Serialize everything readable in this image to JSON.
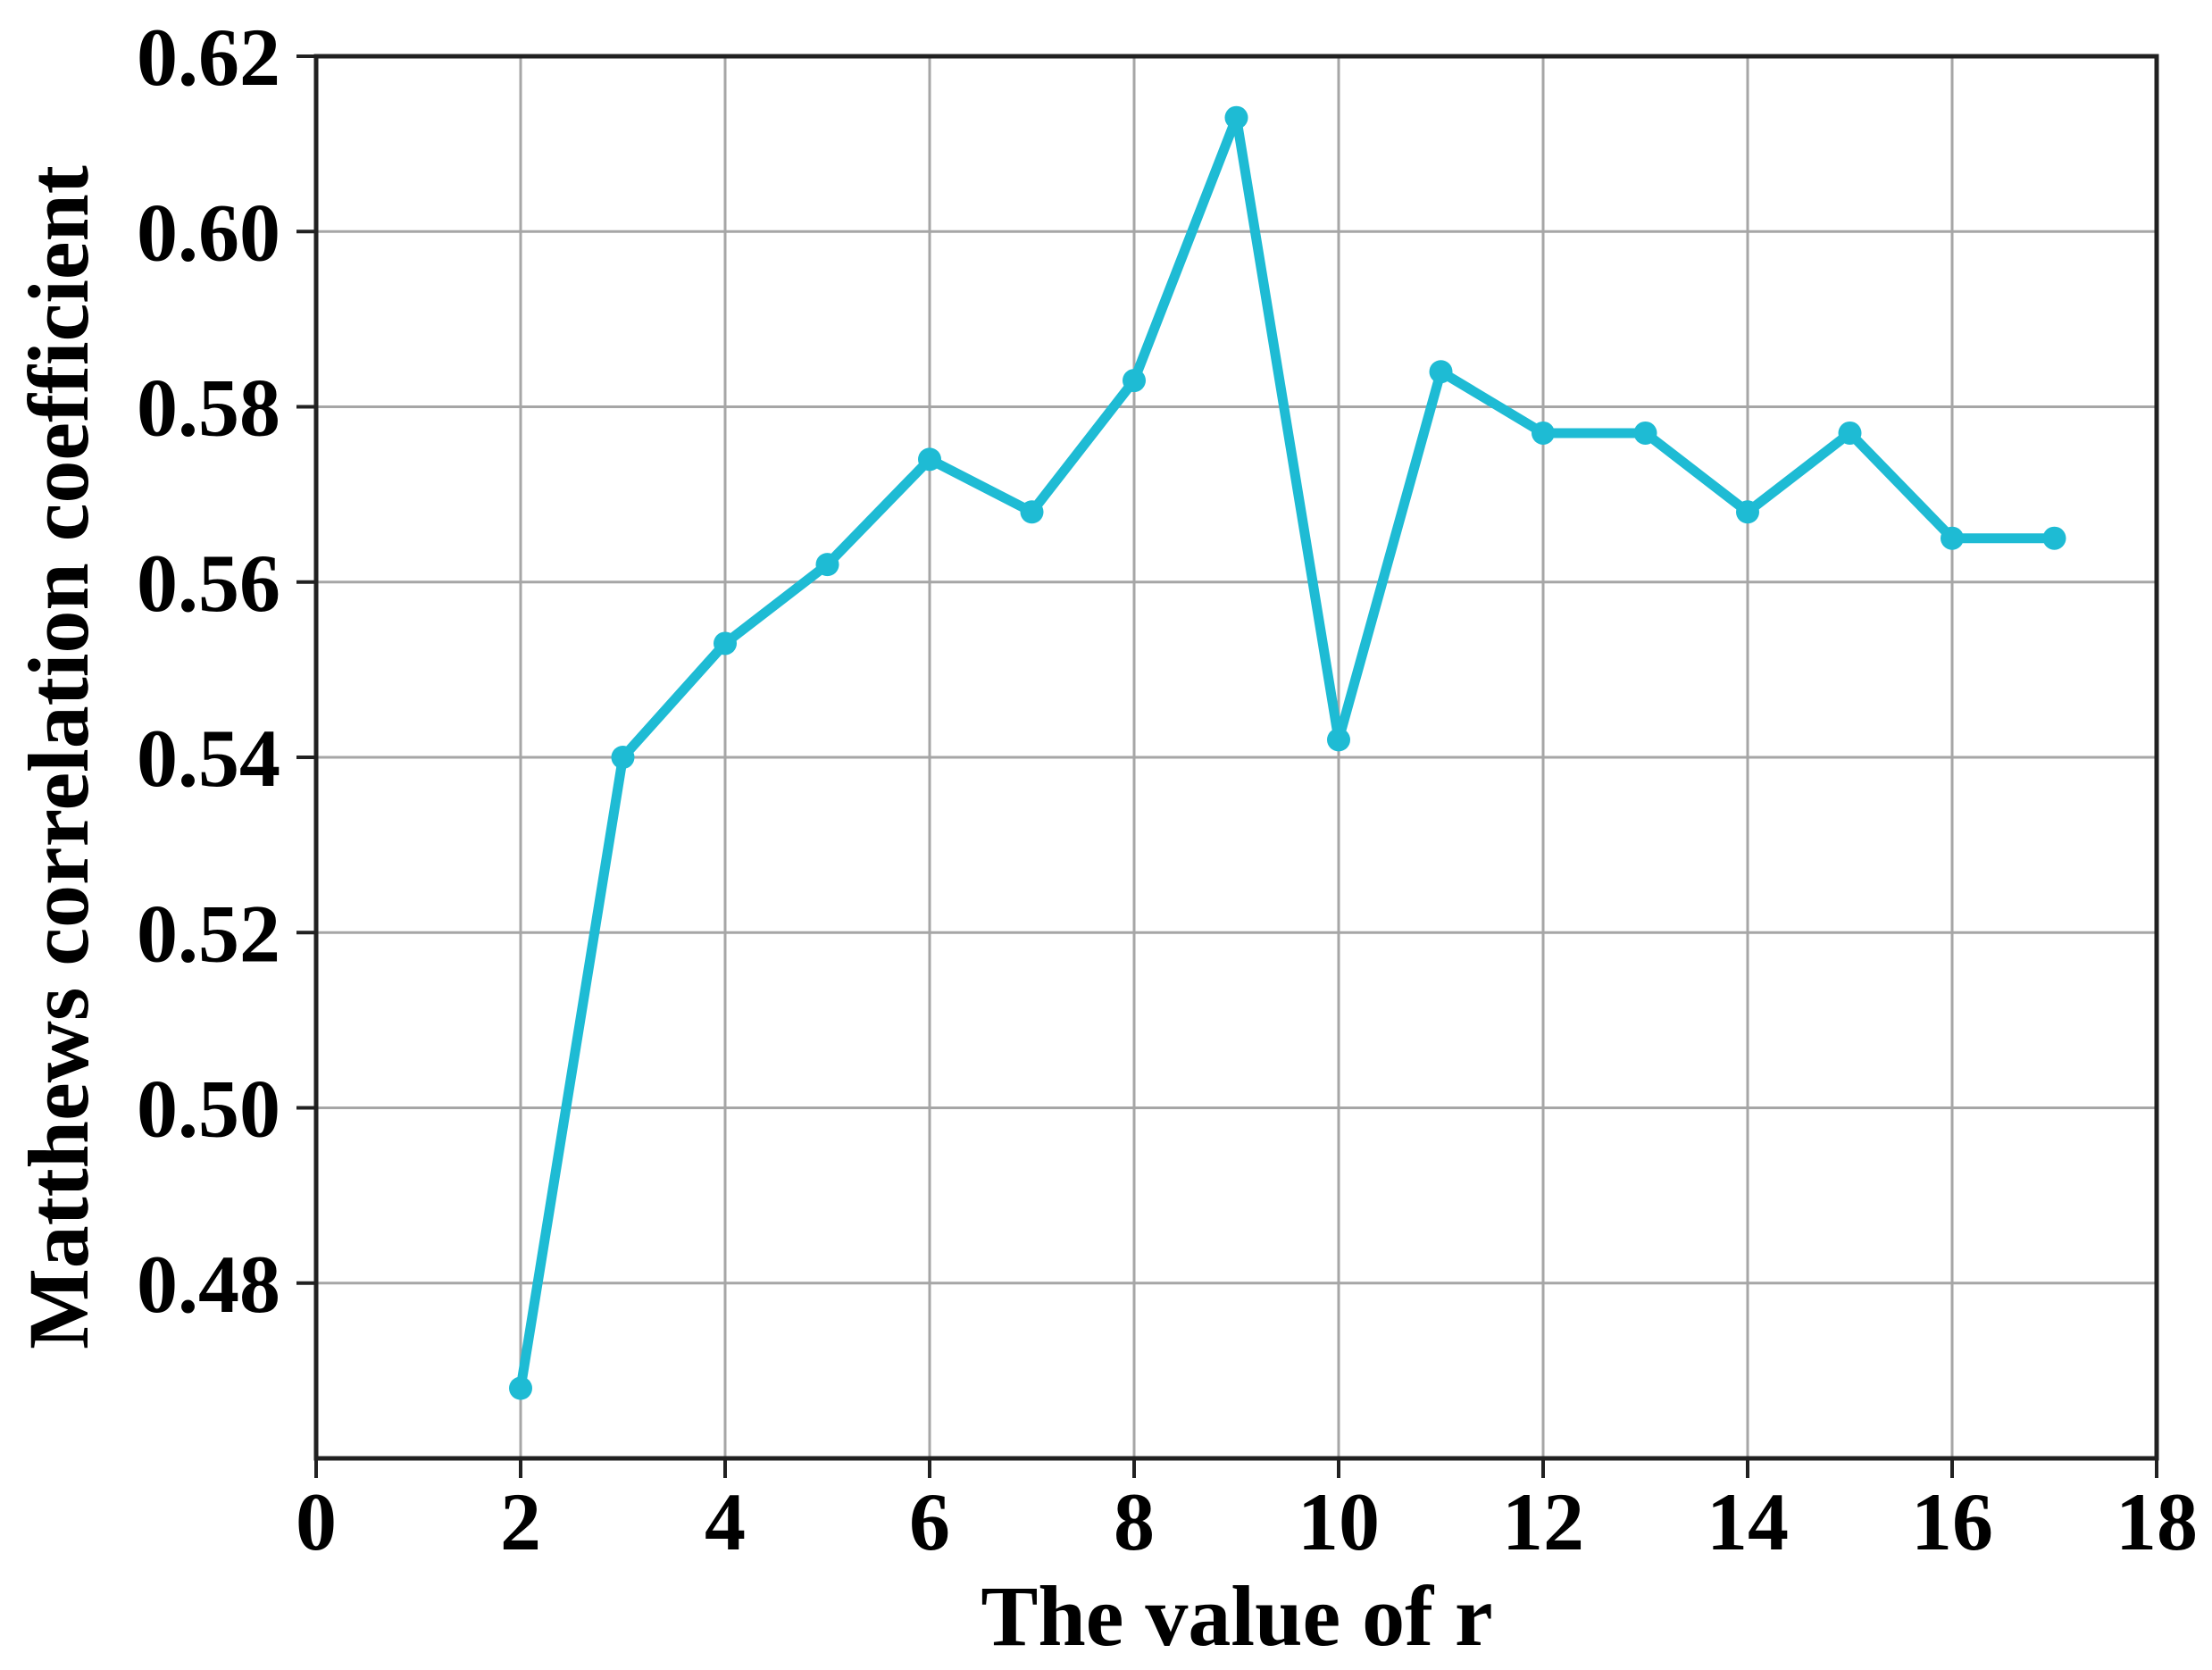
{
  "chart_data": {
    "type": "line",
    "title": "",
    "xlabel": "The value of r",
    "ylabel": "Matthews correlation coefficient",
    "x": [
      2,
      3,
      4,
      5,
      6,
      7,
      8,
      9,
      10,
      11,
      12,
      13,
      14,
      15,
      16,
      17
    ],
    "y": [
      0.468,
      0.54,
      0.553,
      0.562,
      0.574,
      0.568,
      0.583,
      0.613,
      0.542,
      0.584,
      0.577,
      0.577,
      0.568,
      0.577,
      0.565,
      0.565
    ],
    "xlim": [
      0,
      18
    ],
    "ylim": [
      0.46,
      0.62
    ],
    "x_ticks": [
      0,
      2,
      4,
      6,
      8,
      10,
      12,
      14,
      16,
      18
    ],
    "y_ticks": [
      0.48,
      0.5,
      0.52,
      0.54,
      0.56,
      0.58,
      0.6,
      0.62
    ],
    "y_tick_decimals": 2,
    "grid": true,
    "legend_position": "none",
    "line_color": "#1ebbd4",
    "marker": "circle",
    "grid_color": "#a6a6a6",
    "spine_color": "#212121",
    "tick_color": "#212121",
    "tick_label_color": "#000000"
  }
}
